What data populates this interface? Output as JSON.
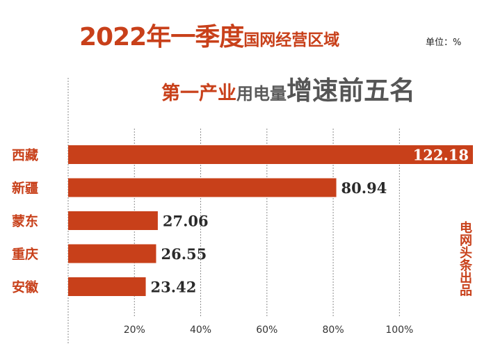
{
  "title": {
    "part1": "2022年一季度",
    "part2": "国网经营区域"
  },
  "unit_label": "单位：%",
  "subtitle": {
    "part1": "第一产业",
    "part2": "用电量",
    "part3": "增速前五名"
  },
  "source": "电网头条出品",
  "colors": {
    "accent": "#c8401a",
    "bar": "#c8401a",
    "gray_text": "#555555"
  },
  "chart_data": {
    "type": "bar",
    "orientation": "horizontal",
    "title": "2022年一季度国网经营区域 第一产业用电量增速前五名",
    "categories": [
      "西藏",
      "新疆",
      "蒙东",
      "重庆",
      "安徽"
    ],
    "values": [
      122.18,
      80.94,
      27.06,
      26.55,
      23.42
    ],
    "value_labels": [
      "122.18",
      "80.94",
      "27.06",
      "26.55",
      "23.42"
    ],
    "xticks": [
      20,
      40,
      60,
      80,
      100
    ],
    "xtick_labels": [
      "20%",
      "40%",
      "60%",
      "80%",
      "100%"
    ],
    "xlim": [
      0,
      122.18
    ],
    "grid": true,
    "xlabel": "",
    "ylabel": "单位：%"
  }
}
